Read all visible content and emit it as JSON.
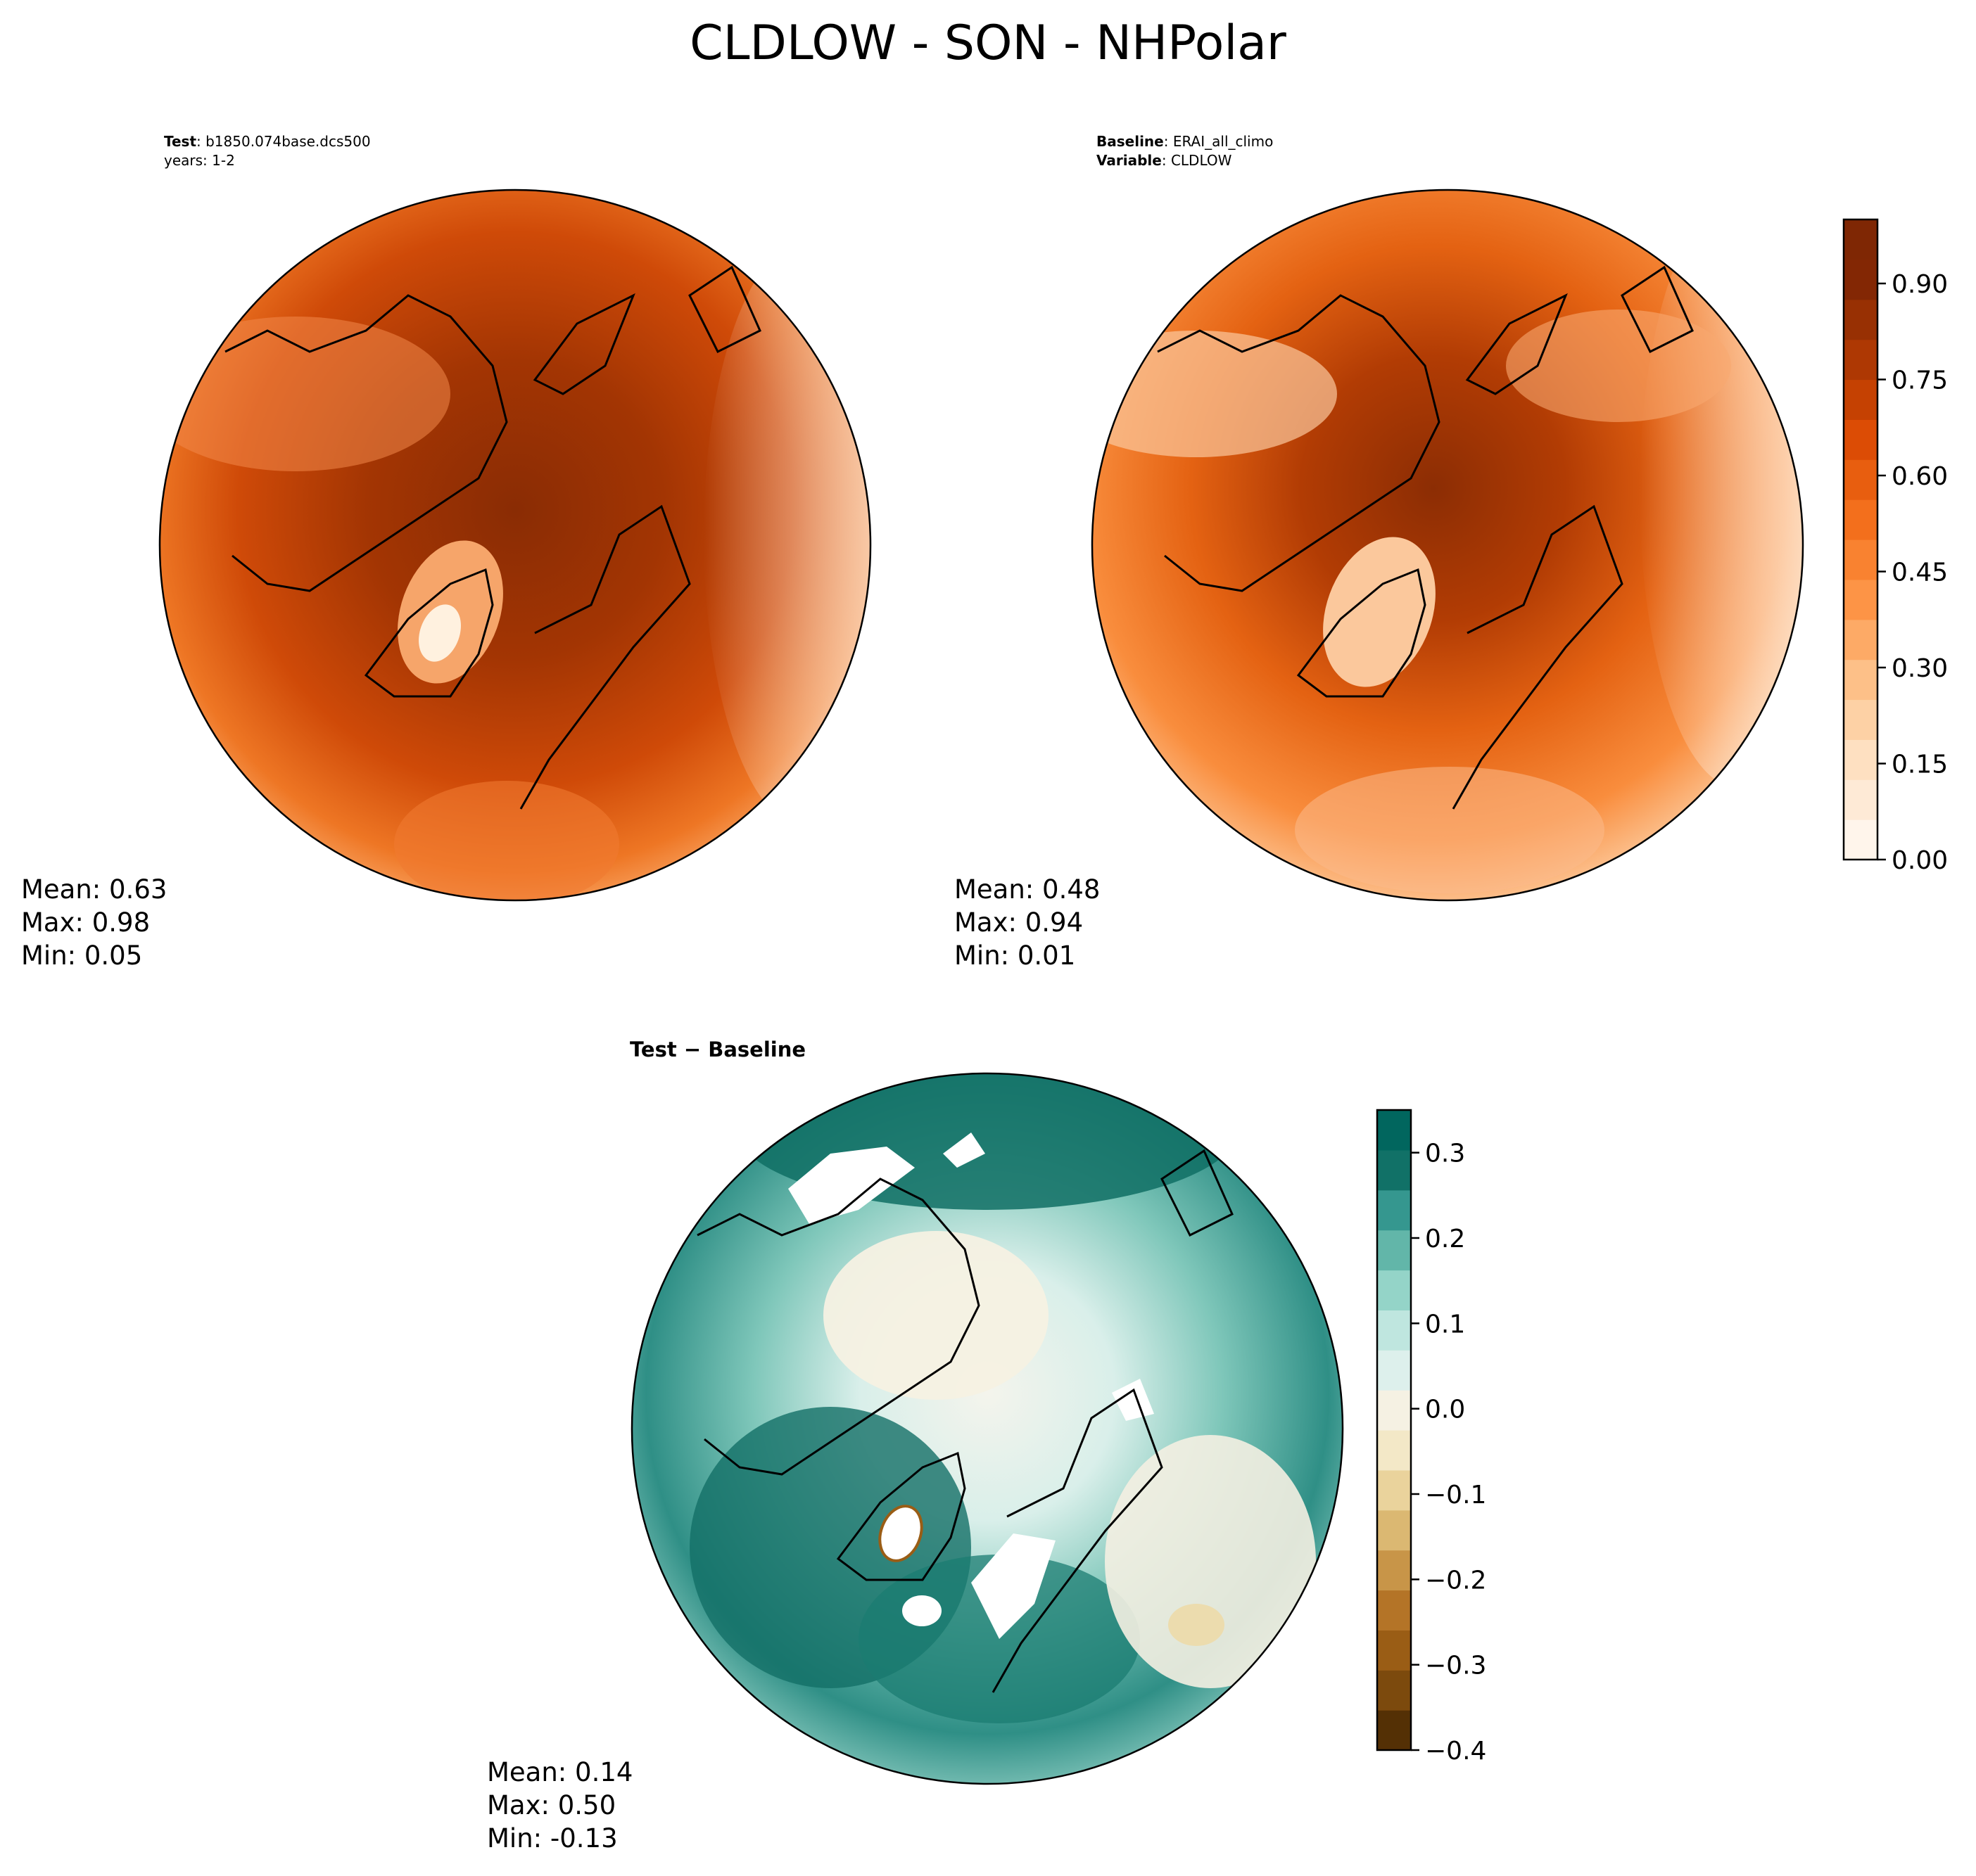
{
  "title": "CLDLOW - SON - NHPolar",
  "test_panel": {
    "info_line1_bold": "Test",
    "info_line1_text": ": b1850.074base.dcs500",
    "info_line2_text": "years: 1-2",
    "stats": {
      "mean": "Mean:  0.63",
      "max": "Max:  0.98",
      "min": "Min:  0.05"
    }
  },
  "baseline_panel": {
    "info_line1_bold": "Baseline",
    "info_line1_text": ": ERAI_all_climo",
    "info_line2_bold": "Variable",
    "info_line2_text": ": CLDLOW",
    "stats": {
      "mean": "Mean:  0.48",
      "max": "Max:  0.94",
      "min": "Min:  0.01"
    }
  },
  "diff_panel": {
    "title": "Test − Baseline",
    "stats": {
      "mean": "Mean:  0.14",
      "max": "Max:  0.50",
      "min": "Min: -0.13"
    }
  },
  "colorbar_main": {
    "ticks": [
      "0.00",
      "0.15",
      "0.30",
      "0.45",
      "0.60",
      "0.75",
      "0.90"
    ],
    "tick_values": [
      0,
      0.15,
      0.3,
      0.45,
      0.6,
      0.75,
      0.9
    ],
    "range": [
      0,
      1
    ],
    "colors": [
      "#fff5eb",
      "#feead6",
      "#fee0c1",
      "#fdd1a5",
      "#fdc088",
      "#fdaa66",
      "#fd9446",
      "#f98230",
      "#f36f1c",
      "#e85e0f",
      "#dc4c05",
      "#c54102",
      "#ae3803",
      "#983003",
      "#832704",
      "#7f2704"
    ]
  },
  "colorbar_diff": {
    "ticks": [
      "0.3",
      "0.2",
      "0.1",
      "0.0",
      "−0.1",
      "−0.2",
      "−0.3",
      "−0.4"
    ],
    "tick_values": [
      0.3,
      0.2,
      0.1,
      0.0,
      -0.1,
      -0.2,
      -0.3,
      -0.4
    ],
    "range": [
      -0.4,
      0.35
    ],
    "colors": [
      "#543005",
      "#7c4a0d",
      "#9a5d15",
      "#b47427",
      "#c89548",
      "#dbb872",
      "#ead39c",
      "#f3e8c7",
      "#f5f1e3",
      "#ddf0ec",
      "#bfe6df",
      "#94d4c8",
      "#62b6a9",
      "#35978f",
      "#117167",
      "#01665e"
    ]
  }
}
